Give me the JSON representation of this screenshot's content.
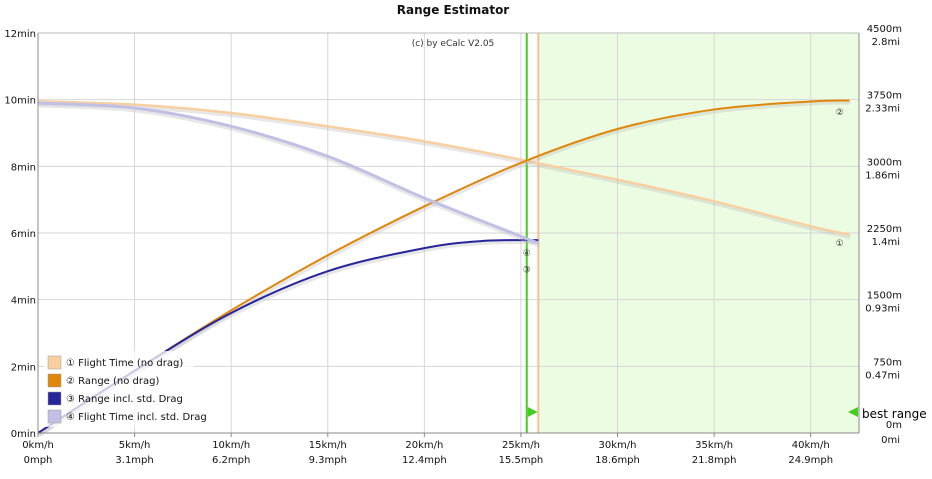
{
  "chart_data": {
    "type": "line",
    "title": "Range Estimator",
    "copyright": "(c) by eCalc  V2.05",
    "x_ticks_kmh": [
      "0km/h",
      "5km/h",
      "10km/h",
      "15km/h",
      "20km/h",
      "25km/h",
      "30km/h",
      "35km/h",
      "40km/h"
    ],
    "x_ticks_mph": [
      "0mph",
      "3.1mph",
      "6.2mph",
      "9.3mph",
      "12.4mph",
      "15.5mph",
      "18.6mph",
      "21.8mph",
      "24.9mph"
    ],
    "x_tick_values": [
      0,
      5,
      10,
      15,
      20,
      25,
      30,
      35,
      40
    ],
    "xlim": [
      0,
      42.5
    ],
    "y_left_ticks": [
      "0min",
      "2min",
      "4min",
      "6min",
      "8min",
      "10min",
      "12min"
    ],
    "y_left_values": [
      0,
      2,
      4,
      6,
      8,
      10,
      12
    ],
    "ylim_left": [
      0,
      12
    ],
    "y_right_ticks_m": [
      "0m",
      "750m",
      "1500m",
      "2250m",
      "3000m",
      "3750m",
      "4500m"
    ],
    "y_right_ticks_mi": [
      "0mi",
      "0.47mi",
      "0.93mi",
      "1.4mi",
      "1.86mi",
      "2.33mi",
      "2.8mi"
    ],
    "y_right_values": [
      0,
      750,
      1500,
      2250,
      3000,
      3750,
      4500
    ],
    "ylim_right": [
      0,
      4500
    ],
    "best_range_label": "best range",
    "best_zone_start_kmh": 25.9,
    "green_line_kmh": 25.3,
    "orange_line_kmh": 25.9,
    "colors": {
      "flight_no_drag": "#f7cfa0",
      "range_no_drag": "#e0860a",
      "range_drag": "#26269a",
      "flight_drag": "#c0c0e4",
      "best_zone": "#ecfce2",
      "green_line": "#44cc22"
    },
    "legend": [
      {
        "marker": "①",
        "label": "Flight Time (no drag)"
      },
      {
        "marker": "②",
        "label": "Range (no drag)"
      },
      {
        "marker": "③",
        "label": "Range incl. std. Drag"
      },
      {
        "marker": "④",
        "label": "Flight Time incl. std. Drag"
      }
    ],
    "series": [
      {
        "name": "Flight Time (no drag)",
        "axis": "left",
        "marker": "①",
        "x": [
          0,
          5,
          10,
          15,
          20,
          25,
          30,
          35,
          40,
          42
        ],
        "y": [
          9.95,
          9.85,
          9.6,
          9.2,
          8.75,
          8.2,
          7.6,
          6.95,
          6.2,
          5.95
        ]
      },
      {
        "name": "Range (no drag)",
        "axis": "right",
        "marker": "②",
        "x": [
          0,
          5,
          10,
          15,
          20,
          25,
          30,
          35,
          40,
          42
        ],
        "y": [
          0,
          700,
          1380,
          2000,
          2550,
          3040,
          3420,
          3640,
          3730,
          3740
        ]
      },
      {
        "name": "Range incl. std. Drag",
        "axis": "right",
        "marker": "③",
        "x": [
          0,
          5,
          10,
          15,
          20,
          23,
          25.9
        ],
        "y": [
          0,
          700,
          1350,
          1820,
          2080,
          2160,
          2170
        ]
      },
      {
        "name": "Flight Time incl. std. Drag",
        "axis": "left",
        "marker": "④",
        "x": [
          0,
          5,
          10,
          15,
          20,
          25,
          25.9
        ],
        "y": [
          9.9,
          9.75,
          9.2,
          8.3,
          7.05,
          5.9,
          5.7
        ]
      }
    ],
    "point_markers": [
      {
        "marker": "①",
        "x": 41.5,
        "axis": "left",
        "y": 5.7
      },
      {
        "marker": "②",
        "x": 41.5,
        "axis": "right",
        "y": 3610
      },
      {
        "marker": "③",
        "x": 25.3,
        "axis": "right",
        "y": 1840
      },
      {
        "marker": "④",
        "x": 25.3,
        "axis": "left",
        "y": 5.4
      }
    ]
  }
}
